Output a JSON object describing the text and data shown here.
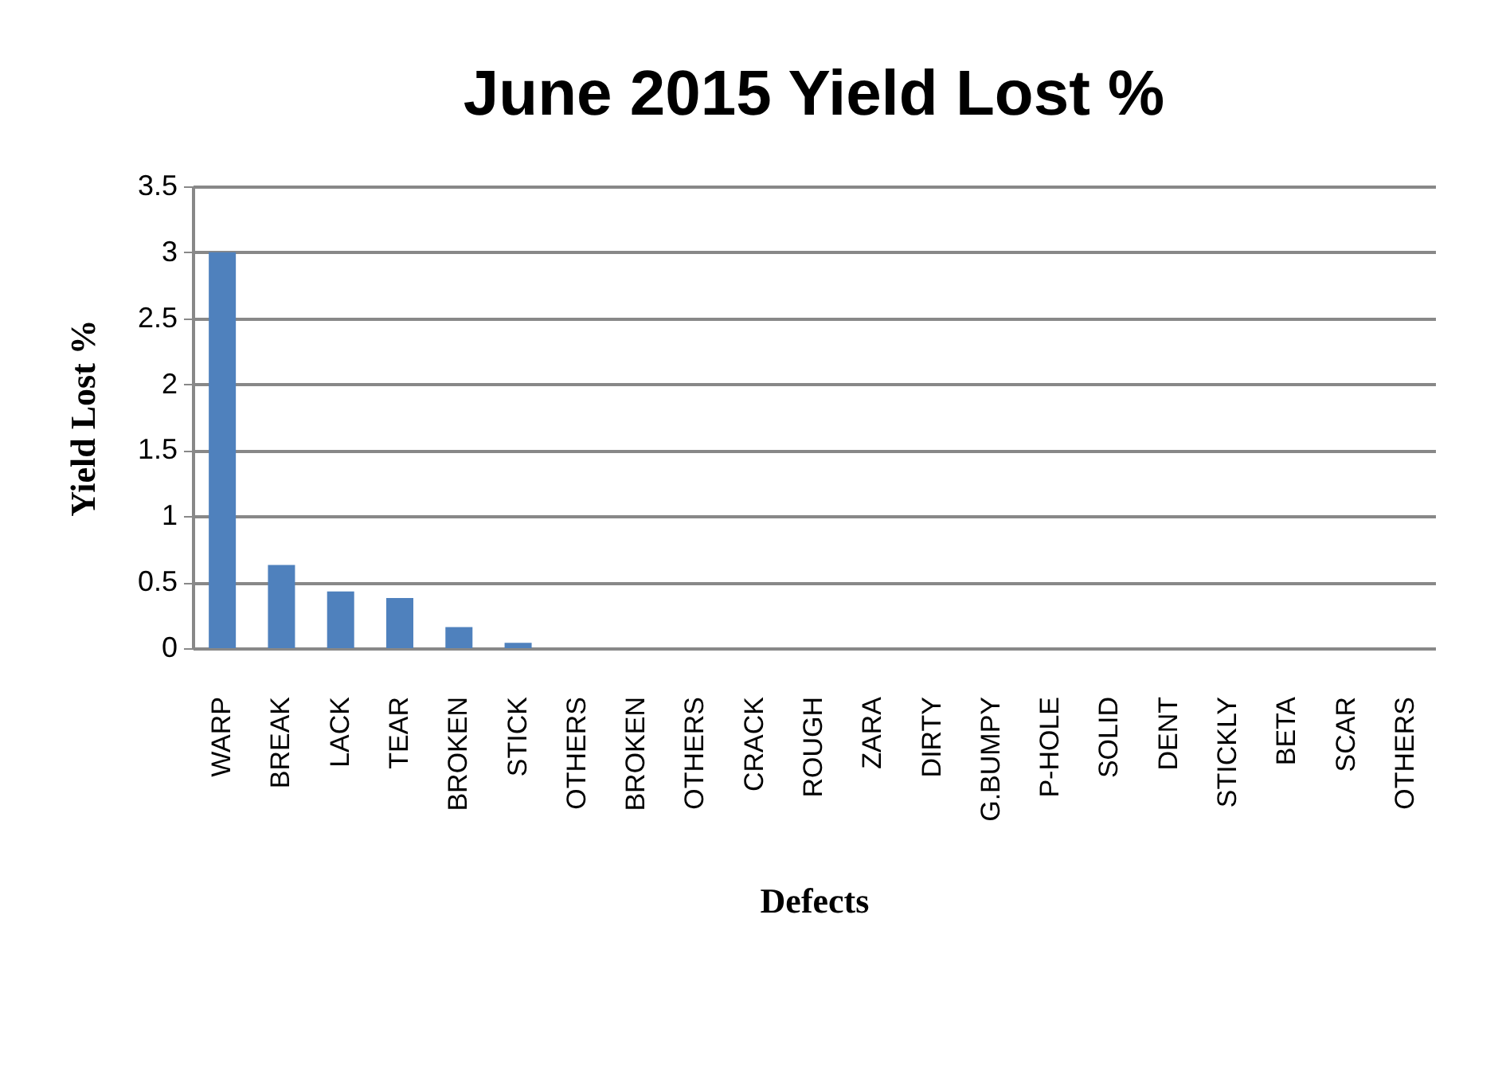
{
  "chart_data": {
    "type": "bar",
    "title": "June 2015 Yield Lost %",
    "xlabel": "Defects",
    "ylabel": "Yield Lost %",
    "categories": [
      "WARP",
      "BREAK",
      "LACK",
      "TEAR",
      "BROKEN",
      "STICK",
      "OTHERS",
      "BROKEN",
      "OTHERS",
      "CRACK",
      "ROUGH",
      "ZARA",
      "DIRTY",
      "G.BUMPY",
      "P-HOLE",
      "SOLID",
      "DENT",
      "STICKLY",
      "BETA",
      "SCAR",
      "OTHERS"
    ],
    "values": [
      3.0,
      0.63,
      0.43,
      0.38,
      0.16,
      0.04,
      0,
      0,
      0,
      0,
      0,
      0,
      0,
      0,
      0,
      0,
      0,
      0,
      0,
      0,
      0
    ],
    "color": "#4f81bd",
    "ylim": [
      0,
      3.5
    ],
    "yticks": [
      0,
      0.5,
      1,
      1.5,
      2,
      2.5,
      3,
      3.5
    ],
    "grid": "y"
  }
}
